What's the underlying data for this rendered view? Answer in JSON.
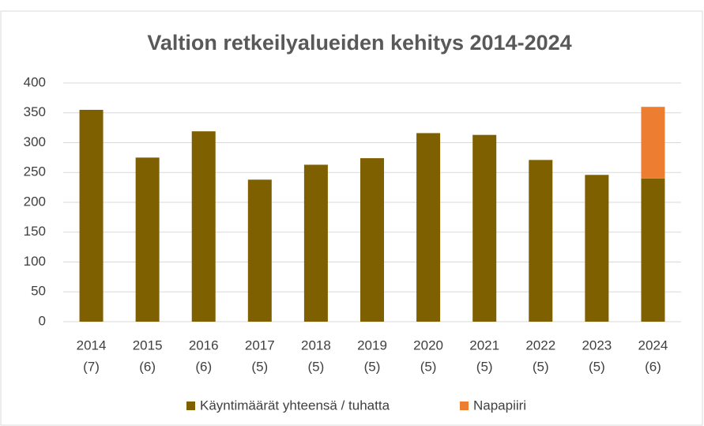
{
  "chart_data": {
    "type": "bar",
    "stacked": true,
    "title": "Valtion retkeilyalueiden kehitys 2014-2024",
    "categories": [
      [
        "2014",
        "(7)"
      ],
      [
        "2015",
        "(6)"
      ],
      [
        "2016",
        "(6)"
      ],
      [
        "2017",
        "(5)"
      ],
      [
        "2018",
        "(5)"
      ],
      [
        "2019",
        "(5)"
      ],
      [
        "2020",
        "(5)"
      ],
      [
        "2021",
        "(5)"
      ],
      [
        "2022",
        "(5)"
      ],
      [
        "2023",
        "(5)"
      ],
      [
        "2024",
        "(6)"
      ]
    ],
    "series": [
      {
        "name": "Käyntimäärät yhteensä / tuhatta",
        "color": "#7f6000",
        "values": [
          355,
          275,
          319,
          238,
          263,
          274,
          316,
          313,
          271,
          246,
          240
        ]
      },
      {
        "name": "Napapiiri",
        "color": "#ed7d31",
        "values": [
          null,
          null,
          null,
          null,
          null,
          null,
          null,
          null,
          null,
          null,
          120
        ]
      }
    ],
    "ylim": [
      0,
      400
    ],
    "yticks": [
      0,
      50,
      100,
      150,
      200,
      250,
      300,
      350,
      400
    ],
    "grid": true,
    "legend": "bottom"
  }
}
